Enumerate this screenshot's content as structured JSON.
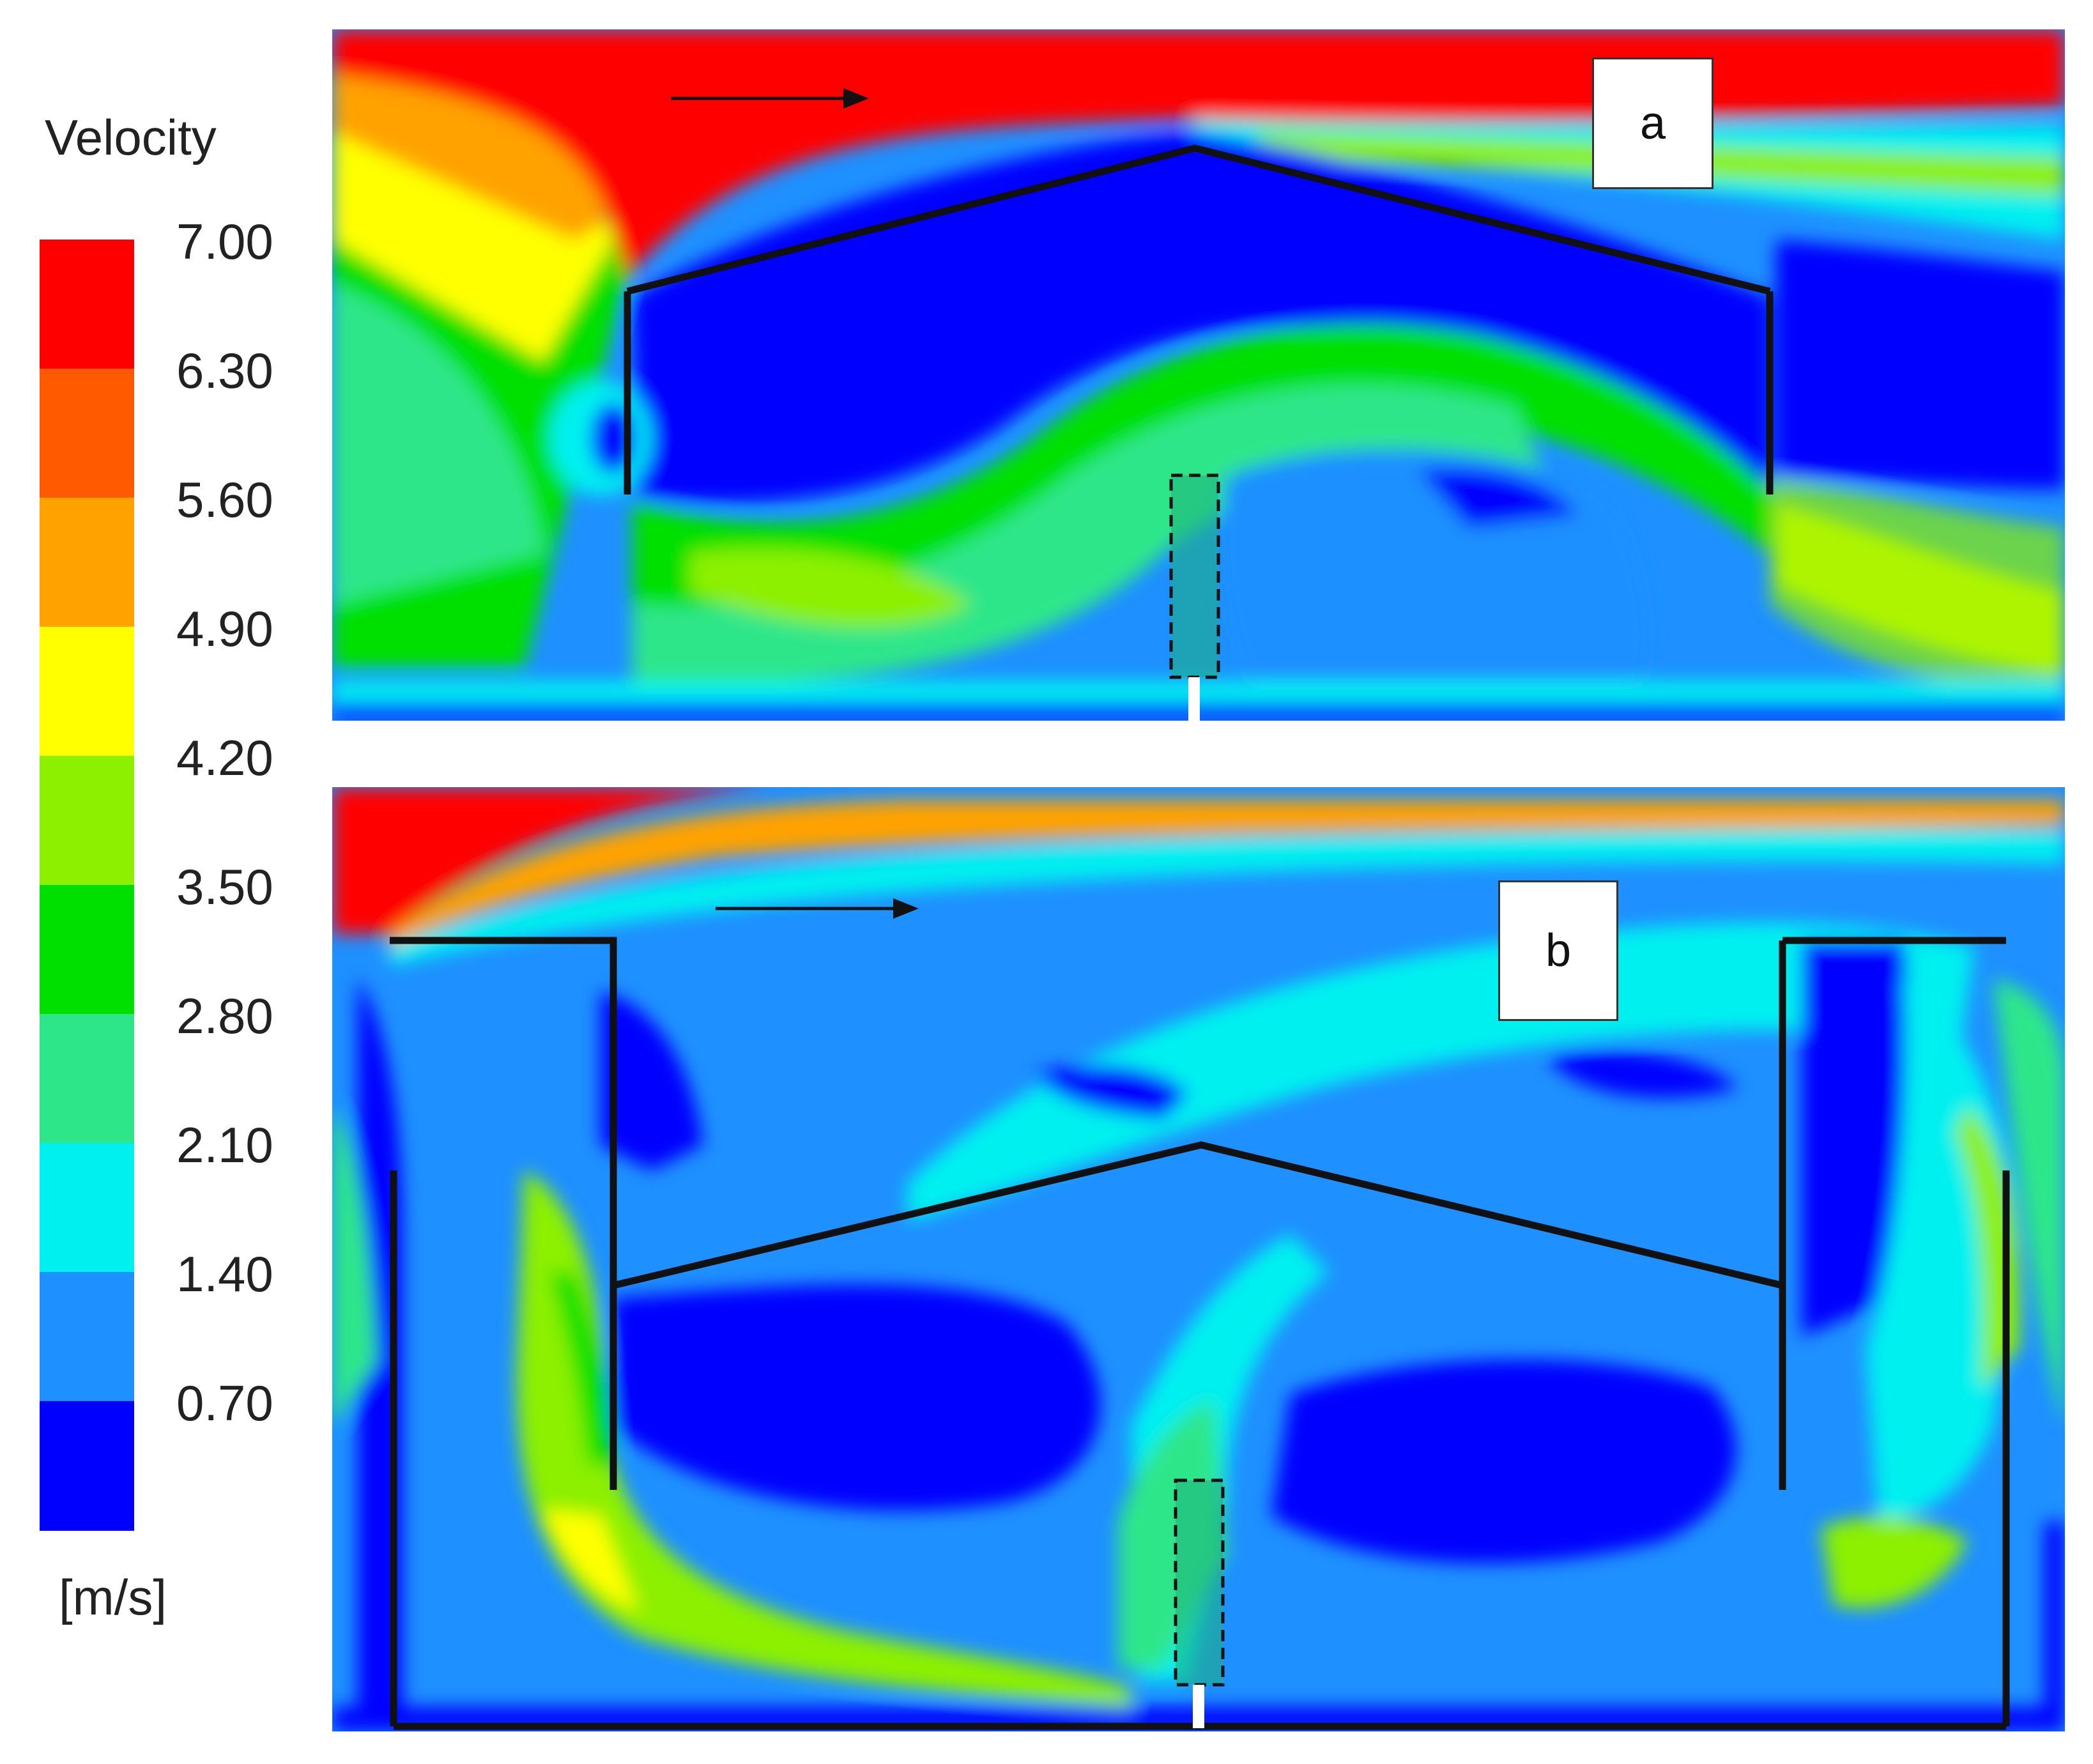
{
  "legend": {
    "title": "Velocity",
    "unit": "[m/s]",
    "levels": [
      "7.00",
      "6.30",
      "5.60",
      "4.90",
      "4.20",
      "3.50",
      "2.80",
      "2.10",
      "1.40",
      "0.70"
    ],
    "band_colors": [
      "#ff0000",
      "#ff5a00",
      "#ffa200",
      "#ffff00",
      "#8cf000",
      "#00e000",
      "#2ee68a",
      "#00f0f0",
      "#1e90ff",
      "#0000ff"
    ]
  },
  "panels": [
    {
      "label": "a"
    },
    {
      "label": "b"
    }
  ]
}
